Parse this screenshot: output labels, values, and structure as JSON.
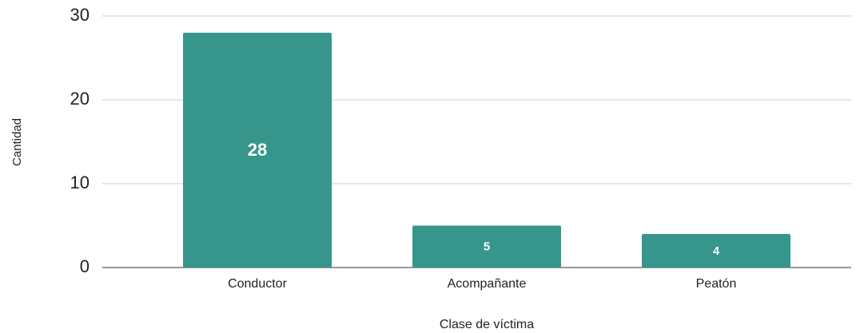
{
  "chart_data": {
    "type": "bar",
    "x_label": "Clase de víctima",
    "y_label": "Cantidad",
    "categories": [
      "Conductor",
      "Acompañante",
      "Peatón"
    ],
    "values": [
      28,
      5,
      4
    ],
    "color": "#36968c",
    "ylim": [
      0,
      30
    ],
    "yticks": [
      0,
      10,
      20,
      30
    ],
    "grid": true,
    "data_labels": true
  }
}
